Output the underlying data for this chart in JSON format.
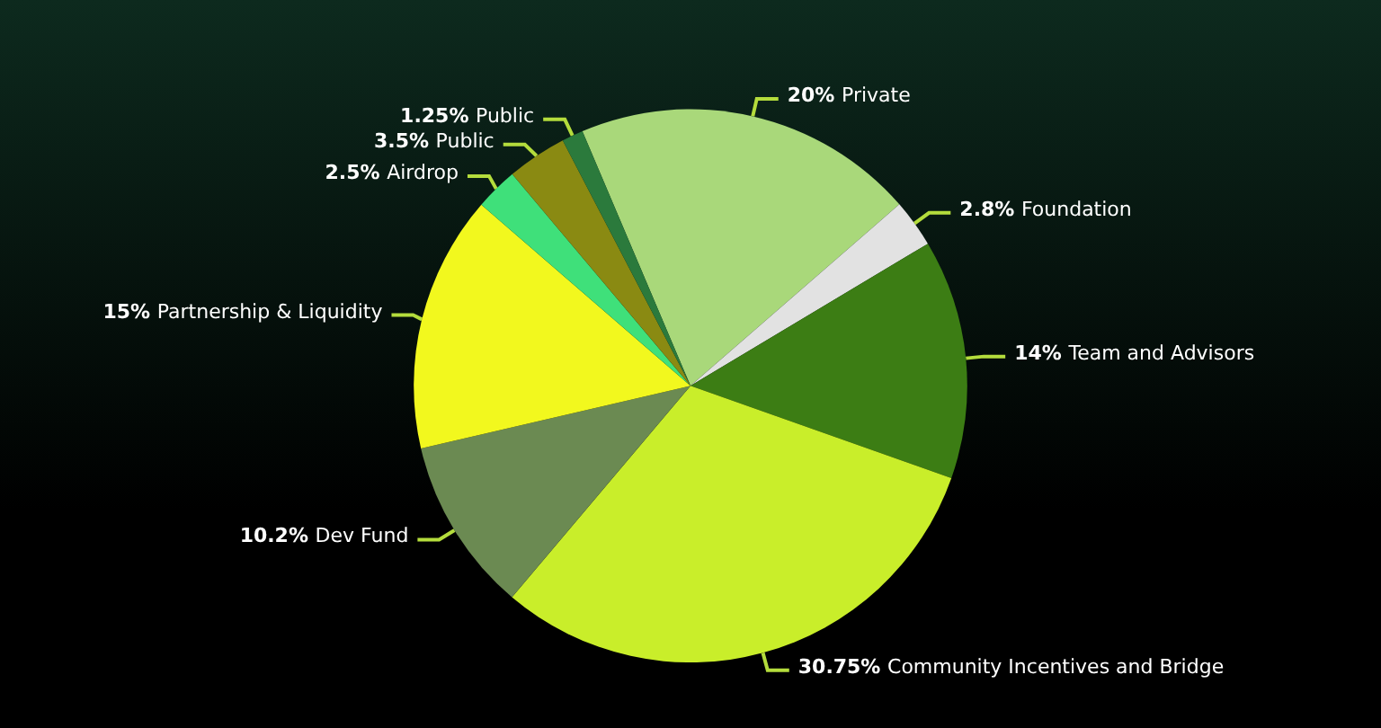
{
  "chart_data": {
    "type": "pie",
    "categories": [
      "Private",
      "Foundation",
      "Team and Advisors",
      "Community Incentives and Bridge",
      "Dev Fund",
      "Partnership & Liquidity",
      "Airdrop",
      "Public",
      "Public"
    ],
    "values": [
      20,
      2.8,
      14,
      30.75,
      10.2,
      15,
      2.5,
      3.5,
      1.25
    ],
    "colors": [
      "#a9d87a",
      "#e2e2e2",
      "#3c7d14",
      "#c9ee2a",
      "#6b8a52",
      "#f2f81e",
      "#3fe07a",
      "#8a8a12",
      "#2b7a3c"
    ],
    "value_labels": [
      "20%",
      "2.8%",
      "14%",
      "30.75%",
      "10.2%",
      "15%",
      "2.5%",
      "3.5%",
      "1.25%"
    ],
    "legend": false
  }
}
